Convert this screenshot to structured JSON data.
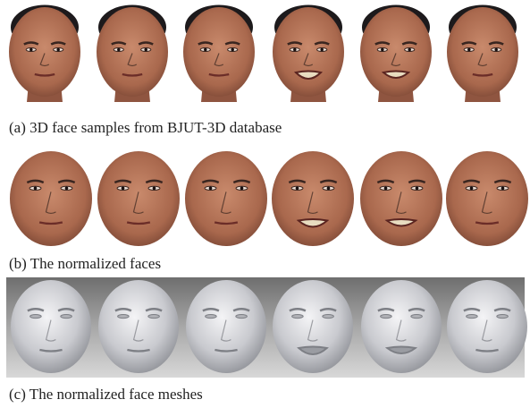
{
  "captions": {
    "a": "(a) 3D face samples from BJUT-3D database",
    "b": "(b) The normalized faces",
    "c": "(c) The normalized face meshes"
  }
}
